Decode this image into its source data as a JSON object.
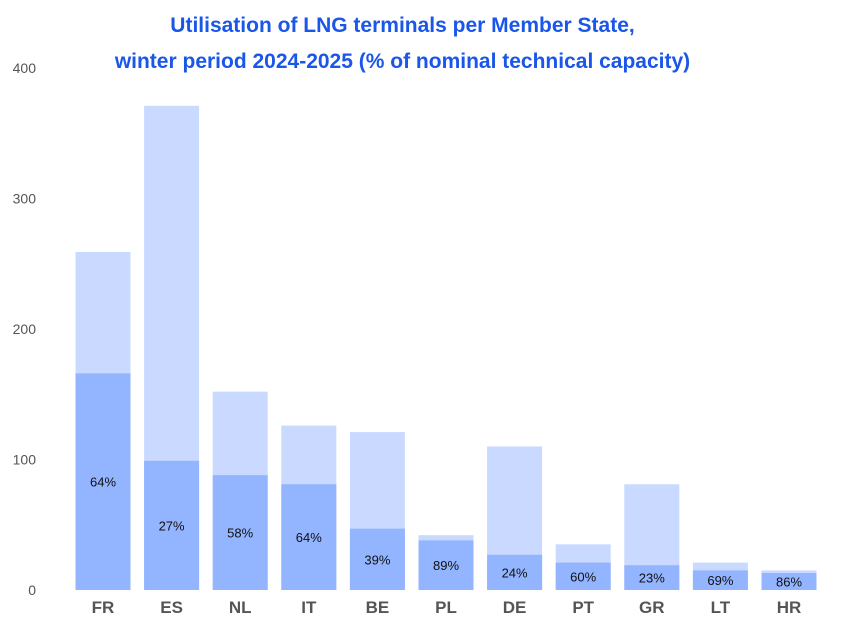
{
  "title_line1": "Utilisation of LNG terminals per Member State,",
  "title_line2": "winter period 2024-2025 (% of nominal technical capacity)",
  "colors": {
    "capacity": "#c9d9ff",
    "utilised": "#93b4ff",
    "title": "#1a56e8"
  },
  "chart_data": {
    "type": "bar",
    "categories": [
      "FR",
      "ES",
      "NL",
      "IT",
      "BE",
      "PL",
      "DE",
      "PT",
      "GR",
      "LT",
      "HR"
    ],
    "series": [
      {
        "values": [
          259,
          371,
          152,
          126,
          121,
          42,
          110,
          35,
          81,
          21,
          15
        ]
      },
      {
        "values": [
          166,
          99,
          88,
          81,
          47,
          38,
          27,
          21,
          19,
          15,
          13
        ]
      }
    ],
    "data_labels": [
      "64%",
      "27%",
      "58%",
      "64%",
      "39%",
      "89%",
      "24%",
      "60%",
      "23%",
      "69%",
      "86%"
    ],
    "ylim": [
      0,
      400
    ],
    "yticks": [
      0,
      100,
      200,
      300,
      400
    ],
    "grid": false,
    "legend": "none"
  }
}
